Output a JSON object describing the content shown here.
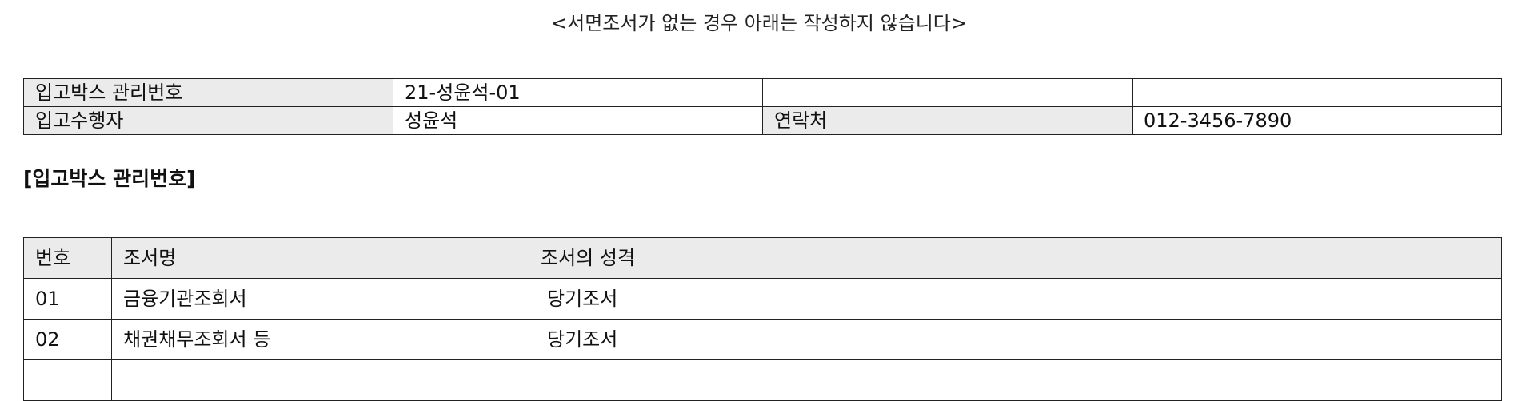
{
  "notice": "<서면조서가 없는 경우 아래는 작성하지 않습니다>",
  "info": {
    "box_id_label": "입고박스 관리번호",
    "box_id_value": "21-성윤석-01",
    "blank_3": "",
    "blank_4": "",
    "performer_label": "입고수행자",
    "performer_value": "성윤석",
    "contact_label": "연락처",
    "contact_value": "012-3456-7890"
  },
  "section_title": "[입고박스 관리번호]",
  "list": {
    "headers": [
      "번호",
      "조서명",
      "조서의 성격"
    ],
    "rows": [
      {
        "no": "01",
        "name": "금융기관조회서",
        "character": "당기조서"
      },
      {
        "no": "02",
        "name": "채권채무조회서 등",
        "character": "당기조서"
      },
      {
        "no": "",
        "name": "",
        "character": ""
      }
    ]
  }
}
